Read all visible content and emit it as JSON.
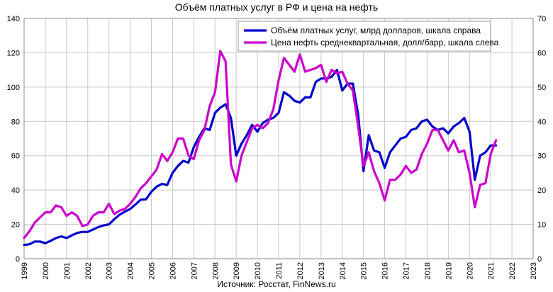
{
  "chart_data": {
    "type": "line",
    "title": "Объём платных услуг в РФ и цена на нефть",
    "source_note": "Источник: Росстат, FinNews.ru",
    "x_range": [
      1999,
      2023
    ],
    "x_ticks": [
      "1999",
      "2000",
      "2001",
      "2002",
      "2003",
      "2004",
      "2005",
      "2006",
      "2007",
      "2008",
      "2009",
      "2010",
      "2011",
      "2012",
      "2013",
      "2014",
      "2015",
      "2016",
      "2017",
      "2018",
      "2019",
      "2020",
      "2021",
      "2022",
      "2023"
    ],
    "y_left": {
      "range": [
        0,
        140
      ],
      "ticks": [
        "0",
        "20",
        "40",
        "60",
        "80",
        "100",
        "120",
        "140"
      ]
    },
    "y_right": {
      "range": [
        0,
        70
      ],
      "ticks": [
        "0",
        "10",
        "20",
        "30",
        "40",
        "50",
        "60",
        "70"
      ]
    },
    "grid": true,
    "legend_position": "top-right",
    "series": [
      {
        "name": "Объём платных услуг, млрд долларов, шкала справа",
        "axis": "right",
        "color": "#0000cc",
        "x": [
          1999.0,
          1999.25,
          1999.5,
          1999.75,
          2000.0,
          2000.25,
          2000.5,
          2000.75,
          2001.0,
          2001.25,
          2001.5,
          2001.75,
          2002.0,
          2002.25,
          2002.5,
          2002.75,
          2003.0,
          2003.25,
          2003.5,
          2003.75,
          2004.0,
          2004.25,
          2004.5,
          2004.75,
          2005.0,
          2005.25,
          2005.5,
          2005.75,
          2006.0,
          2006.25,
          2006.5,
          2006.75,
          2007.0,
          2007.25,
          2007.5,
          2007.75,
          2008.0,
          2008.25,
          2008.5,
          2008.75,
          2009.0,
          2009.25,
          2009.5,
          2009.75,
          2010.0,
          2010.25,
          2010.5,
          2010.75,
          2011.0,
          2011.25,
          2011.5,
          2011.75,
          2012.0,
          2012.25,
          2012.5,
          2012.75,
          2013.0,
          2013.25,
          2013.5,
          2013.75,
          2014.0,
          2014.25,
          2014.5,
          2014.75,
          2015.0,
          2015.25,
          2015.5,
          2015.75,
          2016.0,
          2016.25,
          2016.5,
          2016.75,
          2017.0,
          2017.25,
          2017.5,
          2017.75,
          2018.0,
          2018.25,
          2018.5,
          2018.75,
          2019.0,
          2019.25,
          2019.5,
          2019.75,
          2020.0,
          2020.25,
          2020.5,
          2020.75,
          2021.0,
          2021.25
        ],
        "values": [
          4.0,
          4.2,
          5.0,
          5.0,
          4.5,
          5.2,
          6.0,
          6.5,
          6.0,
          6.8,
          7.5,
          7.8,
          7.8,
          8.5,
          9.2,
          9.7,
          10.0,
          11.5,
          12.8,
          13.7,
          14.5,
          15.8,
          17.2,
          17.3,
          19.5,
          21.0,
          21.8,
          21.5,
          25.0,
          27.0,
          28.5,
          28.0,
          32.5,
          35.5,
          38.0,
          37.5,
          42.5,
          44.0,
          45.0,
          41.0,
          30.0,
          33.5,
          36.0,
          39.0,
          37.0,
          39.5,
          40.5,
          41.0,
          42.5,
          48.5,
          47.5,
          46.0,
          45.5,
          47.0,
          47.0,
          51.5,
          52.5,
          52.5,
          53.0,
          55.0,
          49.0,
          51.0,
          51.0,
          42.0,
          25.5,
          36.0,
          31.5,
          31.0,
          26.5,
          31.0,
          33.0,
          35.0,
          35.5,
          37.5,
          38.0,
          40.0,
          40.5,
          38.5,
          37.5,
          38.0,
          36.5,
          38.5,
          39.5,
          41.0,
          37.0,
          23.0,
          30.0,
          31.0,
          33.0,
          33.0
        ]
      },
      {
        "name": "Цена нефть среднеквартальная, долл/барр, шкала слева",
        "axis": "left",
        "color": "#cc00cc",
        "x": [
          1999.0,
          1999.25,
          1999.5,
          1999.75,
          2000.0,
          2000.25,
          2000.5,
          2000.75,
          2001.0,
          2001.25,
          2001.5,
          2001.75,
          2002.0,
          2002.25,
          2002.5,
          2002.75,
          2003.0,
          2003.25,
          2003.5,
          2003.75,
          2004.0,
          2004.25,
          2004.5,
          2004.75,
          2005.0,
          2005.25,
          2005.5,
          2005.75,
          2006.0,
          2006.25,
          2006.5,
          2006.75,
          2007.0,
          2007.25,
          2007.5,
          2007.75,
          2008.0,
          2008.25,
          2008.5,
          2008.75,
          2009.0,
          2009.25,
          2009.5,
          2009.75,
          2010.0,
          2010.25,
          2010.5,
          2010.75,
          2011.0,
          2011.25,
          2011.5,
          2011.75,
          2012.0,
          2012.25,
          2012.5,
          2012.75,
          2013.0,
          2013.25,
          2013.5,
          2013.75,
          2014.0,
          2014.25,
          2014.5,
          2014.75,
          2015.0,
          2015.25,
          2015.5,
          2015.75,
          2016.0,
          2016.25,
          2016.5,
          2016.75,
          2017.0,
          2017.25,
          2017.5,
          2017.75,
          2018.0,
          2018.25,
          2018.5,
          2018.75,
          2019.0,
          2019.25,
          2019.5,
          2019.75,
          2020.0,
          2020.25,
          2020.5,
          2020.75,
          2021.0,
          2021.25
        ],
        "values": [
          12,
          16,
          21,
          24,
          27,
          27,
          31,
          30,
          25,
          27,
          25,
          19,
          20,
          25,
          27,
          27,
          32,
          26,
          28,
          29,
          32,
          36,
          41,
          44,
          48,
          52,
          61,
          57,
          62,
          70,
          70,
          60,
          58,
          69,
          75,
          89,
          97,
          121,
          115,
          55,
          45,
          60,
          68,
          76,
          78,
          76,
          79,
          87,
          104,
          117,
          113,
          109,
          119,
          109,
          110,
          111,
          113,
          103,
          110,
          108,
          109,
          102,
          98,
          77,
          54,
          62,
          51,
          44,
          34,
          46,
          46,
          49,
          54,
          50,
          52,
          61,
          67,
          75,
          75,
          69,
          63,
          69,
          62,
          63,
          50,
          30,
          43,
          44,
          61,
          69
        ]
      }
    ]
  }
}
